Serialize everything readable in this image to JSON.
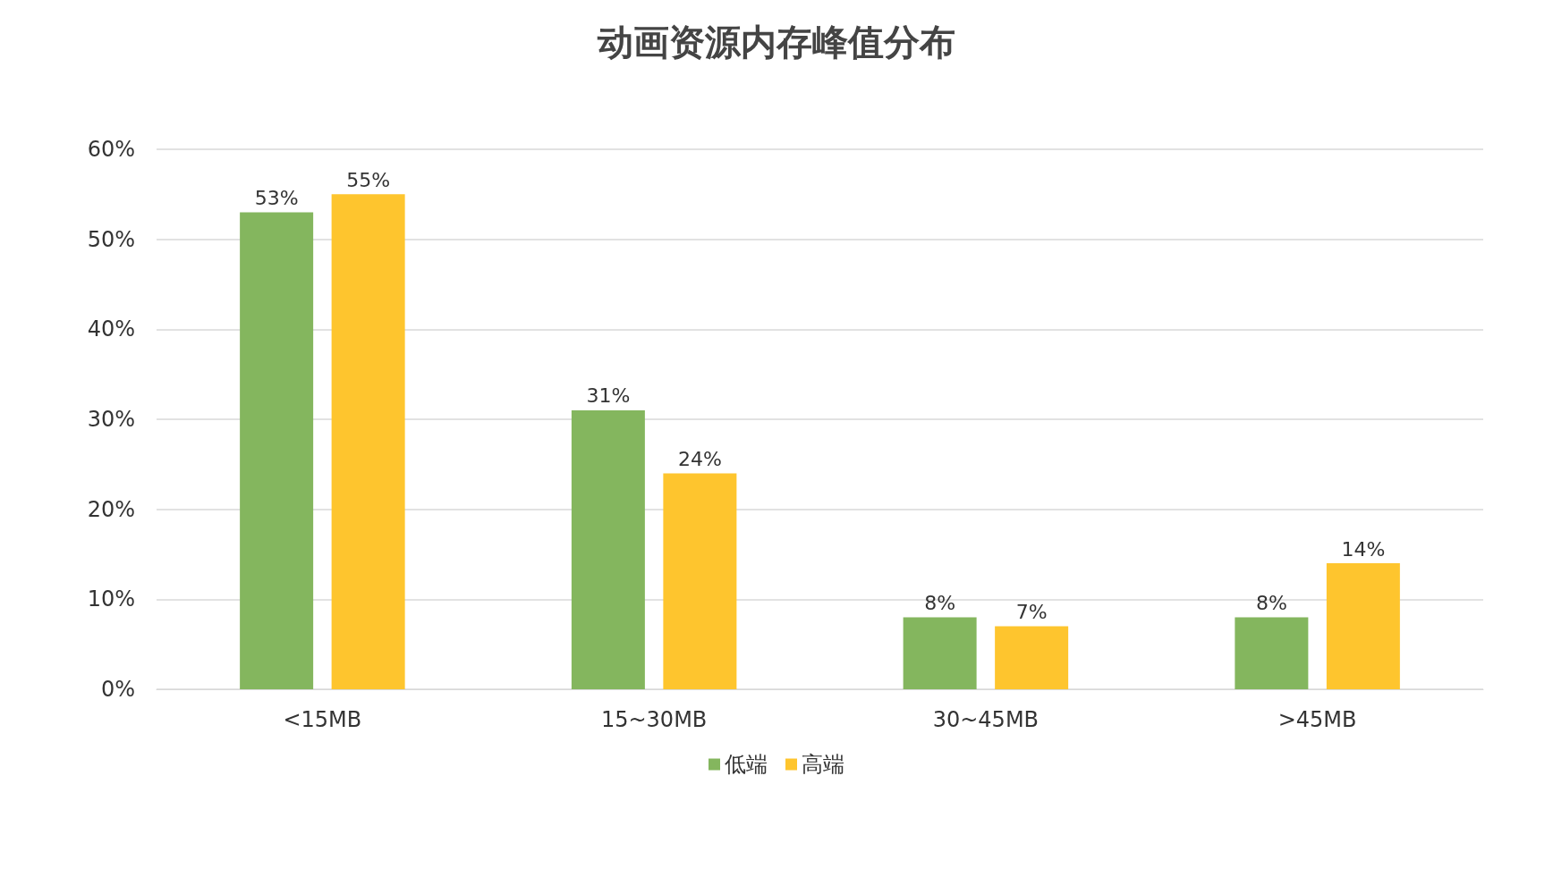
{
  "chart_data": {
    "type": "bar",
    "title": "动画资源内存峰值分布",
    "categories": [
      "<15MB",
      "15~30MB",
      "30~45MB",
      ">45MB"
    ],
    "series": [
      {
        "name": "低端",
        "color": "#84b65e",
        "values": [
          53,
          31,
          8,
          8
        ],
        "value_labels": [
          "53%",
          "31%",
          "8%",
          "8%"
        ]
      },
      {
        "name": "高端",
        "color": "#fec52e",
        "values": [
          55,
          24,
          7,
          14
        ],
        "value_labels": [
          "55%",
          "24%",
          "7%",
          "14%"
        ]
      }
    ],
    "ylim": [
      0,
      60
    ],
    "yticks": [
      {
        "value": 0,
        "label": "0%"
      },
      {
        "value": 10,
        "label": "10%"
      },
      {
        "value": 20,
        "label": "20%"
      },
      {
        "value": 30,
        "label": "30%"
      },
      {
        "value": 40,
        "label": "40%"
      },
      {
        "value": 50,
        "label": "50%"
      },
      {
        "value": 60,
        "label": "60%"
      }
    ],
    "grid": "y",
    "legend": "bottom"
  }
}
